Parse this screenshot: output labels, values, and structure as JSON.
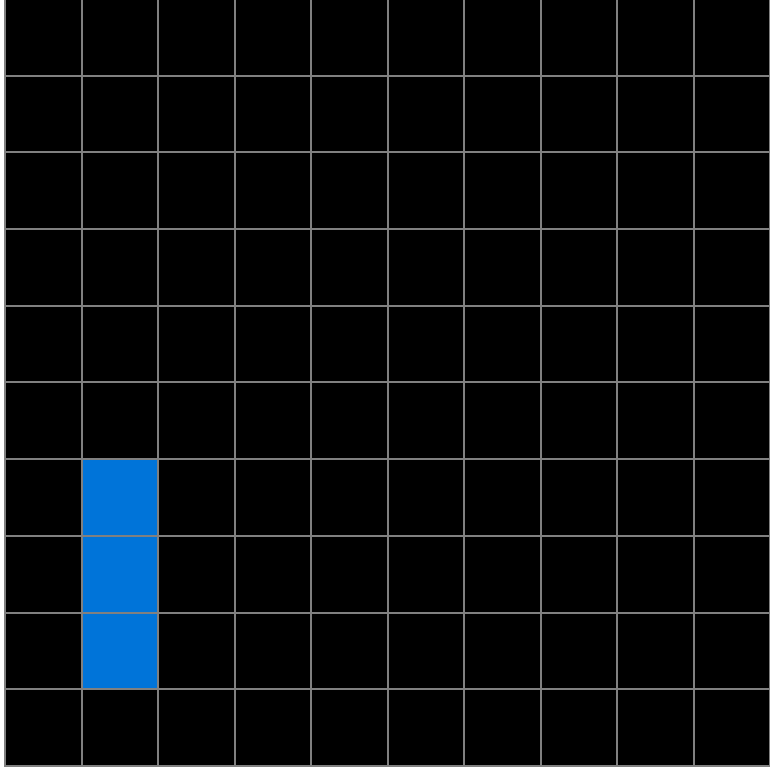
{
  "grid": {
    "rows": 10,
    "cols": 10,
    "colors": {
      "empty": "#000000",
      "filled": "#0074d9",
      "gridline": "#808080"
    },
    "cells": [
      [
        0,
        0,
        0,
        0,
        0,
        0,
        0,
        0,
        0,
        0
      ],
      [
        0,
        0,
        0,
        0,
        0,
        0,
        0,
        0,
        0,
        0
      ],
      [
        0,
        0,
        0,
        0,
        0,
        0,
        0,
        0,
        0,
        0
      ],
      [
        0,
        0,
        0,
        0,
        0,
        0,
        0,
        0,
        0,
        0
      ],
      [
        0,
        0,
        0,
        0,
        0,
        0,
        0,
        0,
        0,
        0
      ],
      [
        0,
        0,
        0,
        0,
        0,
        0,
        0,
        0,
        0,
        0
      ],
      [
        0,
        1,
        0,
        0,
        0,
        0,
        0,
        0,
        0,
        0
      ],
      [
        0,
        1,
        0,
        0,
        0,
        0,
        0,
        0,
        0,
        0
      ],
      [
        0,
        1,
        0,
        0,
        0,
        0,
        0,
        0,
        0,
        0
      ],
      [
        0,
        0,
        0,
        0,
        0,
        0,
        0,
        0,
        0,
        0
      ]
    ]
  }
}
